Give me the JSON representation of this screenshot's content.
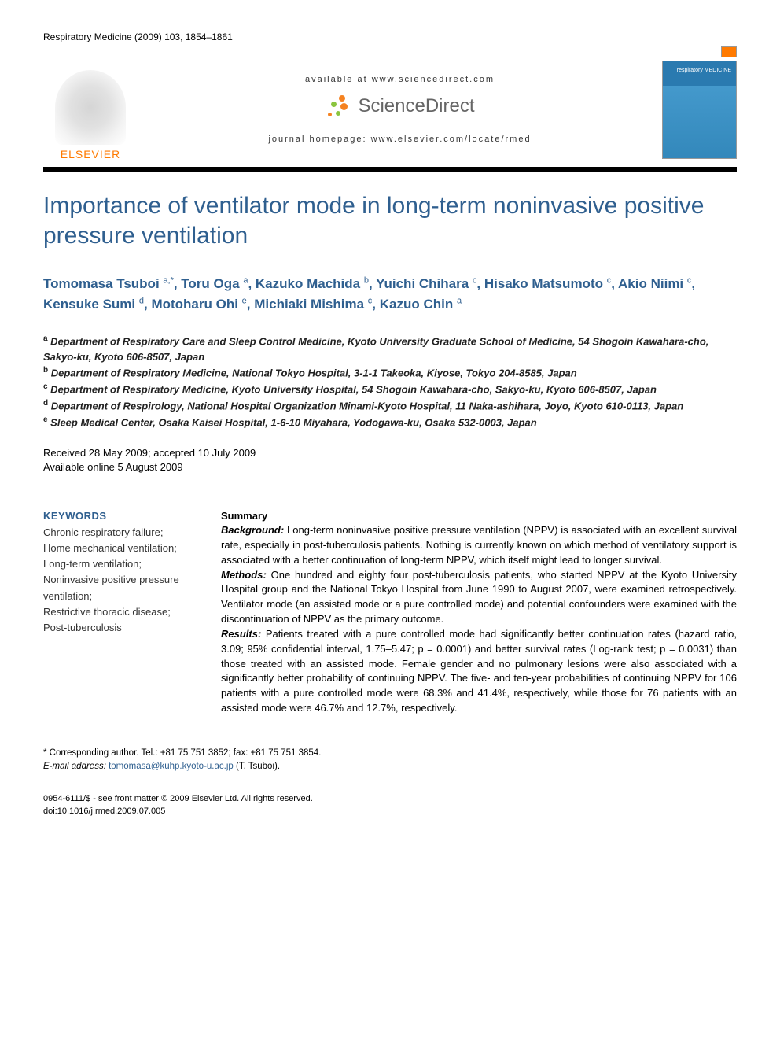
{
  "journal_header": "Respiratory Medicine (2009) 103, 1854–1861",
  "publisher": {
    "logo_text": "ELSEVIER",
    "logo_color": "#ff7a00"
  },
  "header": {
    "available_at": "available at www.sciencedirect.com",
    "sciencedirect_label": "ScienceDirect",
    "homepage": "journal homepage: www.elsevier.com/locate/rmed",
    "cover_title": "respiratory MEDICINE"
  },
  "title": "Importance of ventilator mode in long-term noninvasive positive pressure ventilation",
  "authors_html": "Tomomasa Tsuboi <sup>a,*</sup>, Toru Oga <sup>a</sup>, Kazuko Machida <sup>b</sup>, Yuichi Chihara <sup>c</sup>, Hisako Matsumoto <sup>c</sup>, Akio Niimi <sup>c</sup>, Kensuke Sumi <sup>d</sup>, Motoharu Ohi <sup>e</sup>, Michiaki Mishima <sup>c</sup>, Kazuo Chin <sup>a</sup>",
  "affiliations": [
    {
      "sup": "a",
      "text": "Department of Respiratory Care and Sleep Control Medicine, Kyoto University Graduate School of Medicine, 54 Shogoin Kawahara-cho, Sakyo-ku, Kyoto 606-8507, Japan"
    },
    {
      "sup": "b",
      "text": "Department of Respiratory Medicine, National Tokyo Hospital, 3-1-1 Takeoka, Kiyose, Tokyo 204-8585, Japan"
    },
    {
      "sup": "c",
      "text": "Department of Respiratory Medicine, Kyoto University Hospital, 54 Shogoin Kawahara-cho, Sakyo-ku, Kyoto 606-8507, Japan"
    },
    {
      "sup": "d",
      "text": "Department of Respirology, National Hospital Organization Minami-Kyoto Hospital, 11 Naka-ashihara, Joyo, Kyoto 610-0113, Japan"
    },
    {
      "sup": "e",
      "text": "Sleep Medical Center, Osaka Kaisei Hospital, 1-6-10 Miyahara, Yodogawa-ku, Osaka 532-0003, Japan"
    }
  ],
  "dates": {
    "received_accepted": "Received 28 May 2009; accepted 10 July 2009",
    "online": "Available online 5 August 2009"
  },
  "keywords": {
    "heading": "KEYWORDS",
    "items": [
      "Chronic respiratory failure;",
      "Home mechanical ventilation;",
      "Long-term ventilation;",
      "Noninvasive positive pressure ventilation;",
      "Restrictive thoracic disease;",
      "Post-tuberculosis"
    ]
  },
  "summary": {
    "heading": "Summary",
    "background_label": "Background:",
    "background": " Long-term noninvasive positive pressure ventilation (NPPV) is associated with an excellent survival rate, especially in post-tuberculosis patients. Nothing is currently known on which method of ventilatory support is associated with a better continuation of long-term NPPV, which itself might lead to longer survival.",
    "methods_label": "Methods:",
    "methods": " One hundred and eighty four post-tuberculosis patients, who started NPPV at the Kyoto University Hospital group and the National Tokyo Hospital from June 1990 to August 2007, were examined retrospectively. Ventilator mode (an assisted mode or a pure controlled mode) and potential confounders were examined with the discontinuation of NPPV as the primary outcome.",
    "results_label": "Results:",
    "results": " Patients treated with a pure controlled mode had significantly better continuation rates (hazard ratio, 3.09; 95% confidential interval, 1.75–5.47; p = 0.0001) and better survival rates (Log-rank test; p = 0.0031) than those treated with an assisted mode. Female gender and no pulmonary lesions were also associated with a significantly better probability of continuing NPPV. The five- and ten-year probabilities of continuing NPPV for 106 patients with a pure controlled mode were 68.3% and 41.4%, respectively, while those for 76 patients with an assisted mode were 46.7% and 12.7%, respectively."
  },
  "corresponding": {
    "line1": "* Corresponding author. Tel.: +81 75 751 3852; fax: +81 75 751 3854.",
    "email_label": "E-mail address:",
    "email": "tomomasa@kuhp.kyoto-u.ac.jp",
    "email_suffix": " (T. Tsuboi)."
  },
  "copyright": {
    "line1": "0954-6111/$ - see front matter © 2009 Elsevier Ltd. All rights reserved.",
    "doi": "doi:10.1016/j.rmed.2009.07.005"
  },
  "colors": {
    "title_color": "#2f5f8f",
    "publisher_color": "#ff7a00",
    "sd_orange": "#f58220",
    "sd_green": "#8bc53f",
    "cover_bg": "#2a7ab0"
  }
}
